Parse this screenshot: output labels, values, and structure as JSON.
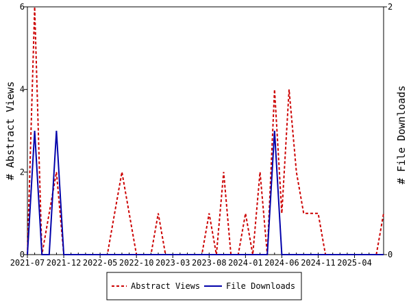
{
  "chart_data": {
    "type": "line",
    "x_tick_labels": [
      "2021-07",
      "2021-12",
      "2022-05",
      "2022-10",
      "2023-03",
      "2023-08",
      "2024-01",
      "2024-06",
      "2024-11",
      "2025-04"
    ],
    "y_left": {
      "label": "# Abstract Views",
      "ticks": [
        "0",
        "2",
        "4",
        "6"
      ],
      "range": [
        0,
        6
      ]
    },
    "y_right": {
      "label": "# File Downloads",
      "ticks": [
        "0",
        "2"
      ],
      "range": [
        0,
        2
      ]
    },
    "x_month_index_range": [
      0,
      49
    ],
    "series": [
      {
        "name": "Abstract Views",
        "axis": "left",
        "color": "#cc0000",
        "style": "dashed",
        "x": [
          0,
          1,
          2,
          3,
          4,
          5,
          6,
          7,
          8,
          9,
          10,
          11,
          12,
          13,
          14,
          15,
          16,
          17,
          18,
          19,
          20,
          21,
          22,
          23,
          24,
          25,
          26,
          27,
          28,
          29,
          30,
          31,
          32,
          33,
          34,
          35,
          36,
          37,
          38,
          39,
          40,
          41,
          42,
          43,
          44,
          45,
          46,
          47,
          48,
          49
        ],
        "y": [
          0,
          6,
          0,
          1,
          2,
          0,
          0,
          0,
          0,
          0,
          0,
          0,
          1,
          2,
          1,
          0,
          0,
          0,
          1,
          0,
          0,
          0,
          0,
          0,
          0,
          1,
          0,
          2,
          0,
          0,
          1,
          0,
          2,
          0,
          4,
          1,
          4,
          2,
          1,
          1,
          1,
          0,
          0,
          0,
          0,
          0,
          0,
          0,
          0,
          1
        ]
      },
      {
        "name": "File Downloads",
        "axis": "right",
        "color": "#0000aa",
        "style": "solid",
        "x": [
          0,
          1,
          2,
          3,
          4,
          5,
          6,
          7,
          8,
          9,
          10,
          11,
          12,
          13,
          14,
          15,
          16,
          17,
          18,
          19,
          20,
          21,
          22,
          23,
          24,
          25,
          26,
          27,
          28,
          29,
          30,
          31,
          32,
          33,
          34,
          35,
          36,
          37,
          38,
          39,
          40,
          41,
          42,
          43,
          44,
          45,
          46,
          47,
          48,
          49
        ],
        "y": [
          0,
          1,
          0,
          0,
          1,
          0,
          0,
          0,
          0,
          0,
          0,
          0,
          0,
          0,
          0,
          0,
          0,
          0,
          0,
          0,
          0,
          0,
          0,
          0,
          0,
          0,
          0,
          0,
          0,
          0,
          0,
          0,
          0,
          0,
          1,
          0,
          0,
          0,
          0,
          0,
          0,
          0,
          0,
          0,
          0,
          0,
          0,
          0,
          0,
          0
        ]
      }
    ],
    "legend_position": "bottom",
    "grid": false
  }
}
